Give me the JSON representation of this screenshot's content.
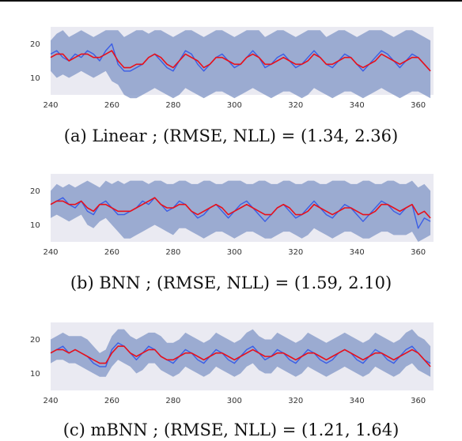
{
  "chart_data": [
    {
      "type": "line",
      "caption": "(a) Linear ; (RMSE, NLL) = (1.34, 2.36)",
      "xlim": [
        240,
        365
      ],
      "ylim": [
        5,
        25
      ],
      "xticks": [
        240,
        260,
        280,
        300,
        320,
        340,
        360
      ],
      "yticks": [
        10,
        20
      ],
      "grid": false,
      "colors": {
        "band": "#8da0cb",
        "background": "#eaeaf2",
        "truth": "#3b5ee5",
        "pred": "#e8101a"
      },
      "x_start": 240,
      "x_step": 2,
      "truth": [
        17,
        18,
        16,
        15,
        17,
        16,
        18,
        17,
        15,
        18,
        20,
        14,
        12,
        12,
        13,
        14,
        16,
        17,
        15,
        13,
        12,
        15,
        18,
        17,
        14,
        12,
        14,
        16,
        17,
        15,
        13,
        14,
        16,
        18,
        16,
        13,
        14,
        16,
        17,
        15,
        13,
        14,
        16,
        18,
        16,
        14,
        13,
        15,
        17,
        16,
        14,
        12,
        14,
        16,
        18,
        17,
        15,
        13,
        15,
        17,
        16,
        14,
        12
      ],
      "pred": [
        16,
        17,
        17,
        15,
        16,
        17,
        17,
        16,
        16,
        17,
        18,
        15,
        13,
        13,
        14,
        14,
        16,
        17,
        16,
        14,
        13,
        15,
        17,
        16,
        15,
        13,
        14,
        16,
        16,
        15,
        14,
        14,
        16,
        17,
        16,
        14,
        14,
        15,
        16,
        15,
        14,
        14,
        15,
        17,
        16,
        14,
        14,
        15,
        16,
        16,
        14,
        13,
        14,
        15,
        17,
        16,
        15,
        14,
        15,
        16,
        16,
        14,
        12
      ],
      "upper": [
        21,
        23,
        24,
        22,
        23,
        24,
        23,
        22,
        23,
        24,
        24,
        24,
        22,
        23,
        24,
        24,
        23,
        24,
        24,
        23,
        22,
        23,
        24,
        24,
        23,
        22,
        23,
        24,
        24,
        23,
        22,
        23,
        24,
        24,
        24,
        22,
        23,
        24,
        24,
        23,
        22,
        23,
        24,
        24,
        24,
        22,
        23,
        24,
        24,
        23,
        22,
        23,
        24,
        24,
        24,
        23,
        22,
        23,
        24,
        24,
        23,
        22,
        21
      ],
      "lower": [
        12,
        10,
        11,
        10,
        11,
        12,
        11,
        10,
        11,
        12,
        9,
        8,
        5,
        4,
        4,
        5,
        6,
        7,
        6,
        5,
        4,
        5,
        7,
        6,
        5,
        4,
        5,
        6,
        6,
        5,
        4,
        5,
        6,
        7,
        6,
        5,
        4,
        5,
        6,
        6,
        5,
        4,
        5,
        7,
        6,
        5,
        4,
        5,
        6,
        6,
        5,
        4,
        5,
        6,
        7,
        6,
        5,
        4,
        5,
        6,
        6,
        5,
        4
      ]
    },
    {
      "type": "line",
      "caption": "(b) BNN ; (RMSE, NLL) = (1.59, 2.10)",
      "xlim": [
        240,
        365
      ],
      "ylim": [
        5,
        25
      ],
      "xticks": [
        240,
        260,
        280,
        300,
        320,
        340,
        360
      ],
      "yticks": [
        10,
        20
      ],
      "grid": false,
      "colors": {
        "band": "#8da0cb",
        "background": "#eaeaf2",
        "truth": "#3b5ee5",
        "pred": "#e8101a"
      },
      "x_start": 240,
      "x_step": 2,
      "truth": [
        16,
        17,
        18,
        16,
        15,
        17,
        14,
        13,
        16,
        17,
        15,
        13,
        13,
        14,
        15,
        17,
        16,
        18,
        16,
        14,
        15,
        17,
        16,
        14,
        12,
        13,
        15,
        16,
        14,
        12,
        14,
        16,
        17,
        15,
        13,
        11,
        13,
        15,
        16,
        14,
        12,
        13,
        15,
        17,
        15,
        13,
        12,
        14,
        16,
        15,
        13,
        11,
        13,
        15,
        17,
        16,
        14,
        13,
        15,
        16,
        9,
        12,
        11
      ],
      "pred": [
        16,
        17,
        17,
        16,
        16,
        17,
        15,
        14,
        16,
        16,
        15,
        14,
        14,
        14,
        15,
        16,
        17,
        18,
        16,
        15,
        15,
        16,
        16,
        14,
        13,
        14,
        15,
        16,
        15,
        13,
        14,
        15,
        16,
        15,
        14,
        13,
        13,
        15,
        16,
        15,
        13,
        13,
        14,
        16,
        15,
        14,
        13,
        14,
        15,
        15,
        14,
        13,
        13,
        14,
        16,
        16,
        15,
        14,
        15,
        16,
        13,
        14,
        12
      ],
      "upper": [
        20,
        22,
        21,
        22,
        21,
        22,
        23,
        22,
        21,
        23,
        22,
        23,
        22,
        23,
        23,
        23,
        22,
        23,
        23,
        22,
        22,
        23,
        23,
        22,
        22,
        23,
        23,
        22,
        22,
        23,
        23,
        23,
        22,
        22,
        23,
        23,
        22,
        22,
        23,
        23,
        22,
        22,
        23,
        23,
        22,
        22,
        23,
        23,
        23,
        22,
        22,
        23,
        23,
        22,
        22,
        23,
        23,
        22,
        22,
        23,
        21,
        22,
        20
      ],
      "lower": [
        12,
        13,
        12,
        11,
        12,
        13,
        10,
        9,
        11,
        12,
        10,
        8,
        6,
        6,
        7,
        8,
        9,
        10,
        9,
        8,
        7,
        9,
        9,
        8,
        7,
        6,
        7,
        8,
        8,
        7,
        6,
        7,
        8,
        8,
        7,
        6,
        6,
        7,
        8,
        8,
        7,
        6,
        7,
        9,
        8,
        7,
        6,
        7,
        8,
        8,
        7,
        6,
        6,
        7,
        8,
        8,
        7,
        7,
        7,
        8,
        5,
        6,
        7
      ]
    },
    {
      "type": "line",
      "caption": "(c) mBNN ; (RMSE, NLL) = (1.21, 1.64)",
      "xlim": [
        240,
        365
      ],
      "ylim": [
        5,
        25
      ],
      "xticks": [
        240,
        260,
        280,
        300,
        320,
        340,
        360
      ],
      "yticks": [
        10,
        20
      ],
      "grid": false,
      "colors": {
        "band": "#8da0cb",
        "background": "#eaeaf2",
        "truth": "#3b5ee5",
        "pred": "#e8101a"
      },
      "x_start": 240,
      "x_step": 2,
      "truth": [
        16,
        17,
        18,
        16,
        17,
        16,
        15,
        13,
        12,
        12,
        17,
        19,
        18,
        16,
        14,
        16,
        18,
        17,
        15,
        14,
        13,
        15,
        17,
        16,
        14,
        13,
        15,
        17,
        16,
        14,
        13,
        15,
        17,
        18,
        16,
        14,
        15,
        17,
        16,
        14,
        13,
        15,
        17,
        16,
        14,
        13,
        14,
        16,
        17,
        16,
        14,
        13,
        15,
        17,
        16,
        14,
        13,
        15,
        17,
        18,
        16,
        14,
        13
      ],
      "pred": [
        16,
        17,
        17,
        16,
        17,
        16,
        15,
        14,
        13,
        13,
        16,
        18,
        18,
        16,
        15,
        16,
        17,
        17,
        15,
        14,
        14,
        15,
        16,
        16,
        15,
        14,
        15,
        16,
        16,
        15,
        14,
        15,
        16,
        17,
        16,
        15,
        15,
        16,
        16,
        15,
        14,
        15,
        16,
        16,
        15,
        14,
        15,
        16,
        17,
        16,
        15,
        14,
        15,
        16,
        16,
        15,
        14,
        15,
        16,
        17,
        16,
        14,
        12
      ],
      "upper": [
        20,
        21,
        22,
        21,
        21,
        21,
        20,
        18,
        16,
        17,
        21,
        23,
        23,
        21,
        20,
        21,
        22,
        22,
        21,
        19,
        19,
        20,
        22,
        21,
        20,
        19,
        20,
        22,
        21,
        20,
        19,
        20,
        22,
        23,
        21,
        20,
        20,
        22,
        21,
        20,
        19,
        20,
        22,
        21,
        20,
        19,
        20,
        21,
        22,
        21,
        20,
        19,
        20,
        22,
        21,
        20,
        19,
        20,
        22,
        23,
        21,
        20,
        18
      ],
      "lower": [
        13,
        14,
        14,
        13,
        13,
        12,
        11,
        10,
        9,
        9,
        12,
        14,
        13,
        12,
        10,
        11,
        13,
        13,
        11,
        10,
        9,
        10,
        12,
        11,
        10,
        9,
        10,
        12,
        11,
        10,
        9,
        10,
        12,
        13,
        11,
        10,
        10,
        12,
        11,
        10,
        9,
        10,
        12,
        11,
        10,
        9,
        10,
        11,
        12,
        11,
        10,
        9,
        10,
        12,
        11,
        10,
        9,
        10,
        12,
        13,
        11,
        10,
        9
      ]
    }
  ]
}
